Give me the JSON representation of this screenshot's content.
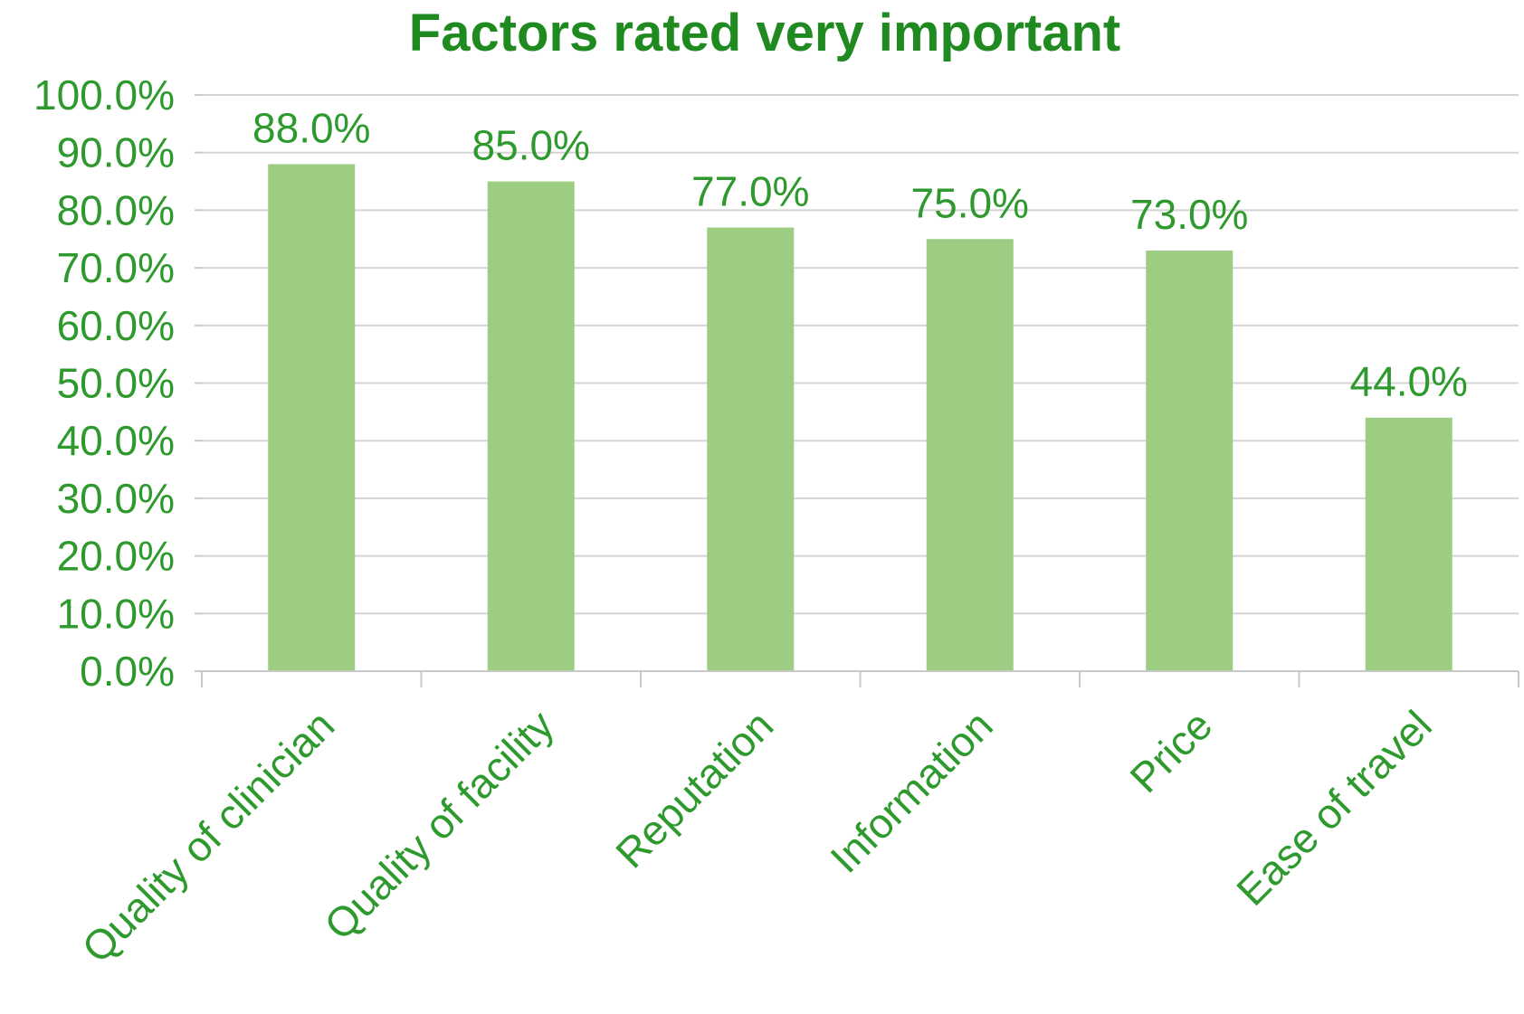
{
  "colors": {
    "text": "#2e9a2e",
    "title": "#1f8a1f",
    "bar": "#9dcd82",
    "grid": "#d4d4d4",
    "axis": "#c8c8c8",
    "background": "#ffffff"
  },
  "chart_data": {
    "type": "bar",
    "title": "Factors rated very important",
    "xlabel": "",
    "ylabel": "",
    "categories": [
      "Quality of clinician",
      "Quality of facility",
      "Reputation",
      "Information",
      "Price",
      "Ease of travel"
    ],
    "values": [
      88.0,
      85.0,
      77.0,
      75.0,
      73.0,
      44.0
    ],
    "data_labels": [
      "88.0%",
      "85.0%",
      "77.0%",
      "75.0%",
      "73.0%",
      "44.0%"
    ],
    "ylim": [
      0,
      100
    ],
    "yticks": [
      0,
      10,
      20,
      30,
      40,
      50,
      60,
      70,
      80,
      90,
      100
    ],
    "ytick_labels": [
      "0.0%",
      "10.0%",
      "20.0%",
      "30.0%",
      "40.0%",
      "50.0%",
      "60.0%",
      "70.0%",
      "80.0%",
      "90.0%",
      "100.0%"
    ],
    "grid": true,
    "legend": "none",
    "category_label_rotation": "-45"
  }
}
